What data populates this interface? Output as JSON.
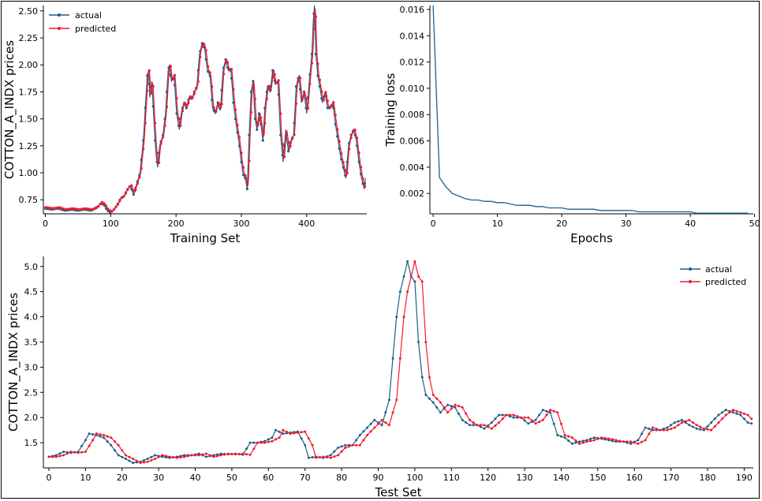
{
  "colors": {
    "actual": "#1f5f8b",
    "predicted": "#ee1c2e",
    "loss": "#1f5f8b"
  },
  "chart_data": [
    {
      "type": "line",
      "panel": "training",
      "xlabel": "Training Set",
      "ylabel": "COTTON_A_INDX prices",
      "xlim": [
        -3,
        492
      ],
      "ylim": [
        0.62,
        2.55
      ],
      "xticks": [
        0,
        100,
        200,
        300,
        400
      ],
      "yticks": [
        0.75,
        1.0,
        1.25,
        1.5,
        1.75,
        2.0,
        2.25,
        2.5
      ],
      "legend": "top-left",
      "series": [
        {
          "name": "actual",
          "key": "actual",
          "keypoints": [
            [
              0,
              0.67
            ],
            [
              10,
              0.66
            ],
            [
              20,
              0.67
            ],
            [
              30,
              0.65
            ],
            [
              40,
              0.66
            ],
            [
              50,
              0.65
            ],
            [
              60,
              0.66
            ],
            [
              70,
              0.65
            ],
            [
              80,
              0.68
            ],
            [
              85,
              0.72
            ],
            [
              90,
              0.7
            ],
            [
              95,
              0.65
            ],
            [
              100,
              0.63
            ],
            [
              105,
              0.66
            ],
            [
              110,
              0.7
            ],
            [
              115,
              0.76
            ],
            [
              120,
              0.78
            ],
            [
              125,
              0.84
            ],
            [
              130,
              0.88
            ],
            [
              135,
              0.8
            ],
            [
              140,
              0.9
            ],
            [
              145,
              1.0
            ],
            [
              150,
              1.3
            ],
            [
              153,
              1.6
            ],
            [
              156,
              1.9
            ],
            [
              158,
              1.95
            ],
            [
              160,
              1.7
            ],
            [
              163,
              1.85
            ],
            [
              166,
              1.5
            ],
            [
              169,
              1.2
            ],
            [
              172,
              1.05
            ],
            [
              175,
              1.25
            ],
            [
              180,
              1.35
            ],
            [
              184,
              1.55
            ],
            [
              188,
              1.95
            ],
            [
              190,
              2.0
            ],
            [
              193,
              1.85
            ],
            [
              197,
              1.9
            ],
            [
              201,
              1.55
            ],
            [
              205,
              1.4
            ],
            [
              208,
              1.55
            ],
            [
              212,
              1.65
            ],
            [
              216,
              1.6
            ],
            [
              220,
              1.7
            ],
            [
              224,
              1.68
            ],
            [
              228,
              1.75
            ],
            [
              232,
              1.8
            ],
            [
              236,
              2.1
            ],
            [
              240,
              2.2
            ],
            [
              244,
              2.15
            ],
            [
              248,
              1.95
            ],
            [
              252,
              1.9
            ],
            [
              256,
              1.6
            ],
            [
              260,
              1.55
            ],
            [
              264,
              1.65
            ],
            [
              268,
              1.58
            ],
            [
              272,
              1.95
            ],
            [
              276,
              2.05
            ],
            [
              280,
              1.95
            ],
            [
              284,
              1.95
            ],
            [
              288,
              1.65
            ],
            [
              292,
              1.45
            ],
            [
              296,
              1.3
            ],
            [
              300,
              1.1
            ],
            [
              303,
              0.98
            ],
            [
              306,
              0.95
            ],
            [
              309,
              0.85
            ],
            [
              312,
              1.35
            ],
            [
              315,
              1.75
            ],
            [
              318,
              1.85
            ],
            [
              321,
              1.5
            ],
            [
              324,
              1.4
            ],
            [
              327,
              1.55
            ],
            [
              330,
              1.45
            ],
            [
              333,
              1.3
            ],
            [
              336,
              1.6
            ],
            [
              340,
              1.8
            ],
            [
              344,
              1.75
            ],
            [
              348,
              1.95
            ],
            [
              352,
              1.82
            ],
            [
              356,
              1.85
            ],
            [
              360,
              1.35
            ],
            [
              364,
              1.1
            ],
            [
              368,
              1.4
            ],
            [
              372,
              1.2
            ],
            [
              376,
              1.3
            ],
            [
              380,
              1.35
            ],
            [
              384,
              1.8
            ],
            [
              388,
              1.9
            ],
            [
              392,
              1.65
            ],
            [
              396,
              1.75
            ],
            [
              400,
              1.55
            ],
            [
              404,
              1.85
            ],
            [
              408,
              2.1
            ],
            [
              410,
              2.4
            ],
            [
              412,
              2.55
            ],
            [
              414,
              2.1
            ],
            [
              417,
              1.9
            ],
            [
              420,
              1.8
            ],
            [
              424,
              1.65
            ],
            [
              428,
              1.75
            ],
            [
              432,
              1.6
            ],
            [
              436,
              1.6
            ],
            [
              440,
              1.65
            ],
            [
              444,
              1.45
            ],
            [
              448,
              1.3
            ],
            [
              452,
              1.15
            ],
            [
              456,
              1.05
            ],
            [
              460,
              0.95
            ],
            [
              464,
              1.25
            ],
            [
              468,
              1.35
            ],
            [
              472,
              1.4
            ],
            [
              476,
              1.3
            ],
            [
              480,
              1.1
            ],
            [
              484,
              0.95
            ],
            [
              488,
              0.85
            ],
            [
              490,
              0.95
            ]
          ]
        },
        {
          "name": "predicted",
          "key": "predicted",
          "lag": 1.5,
          "offset": 0.01
        }
      ]
    },
    {
      "type": "line",
      "panel": "loss",
      "xlabel": "Epochs",
      "ylabel": "Training loss",
      "xlim": [
        -0.5,
        49.8
      ],
      "ylim": [
        0.00045,
        0.0163
      ],
      "xticks": [
        0,
        10,
        20,
        30,
        40,
        50
      ],
      "yticks": [
        0.002,
        0.004,
        0.006,
        0.008,
        0.01,
        0.012,
        0.014,
        0.016
      ],
      "series": [
        {
          "name": "",
          "key": "loss",
          "x": [
            0,
            1,
            2,
            3,
            4,
            5,
            6,
            7,
            8,
            9,
            10,
            11,
            12,
            13,
            14,
            15,
            16,
            17,
            18,
            19,
            20,
            21,
            22,
            23,
            24,
            25,
            26,
            27,
            28,
            29,
            30,
            31,
            32,
            33,
            34,
            35,
            36,
            37,
            38,
            39,
            40,
            41,
            42,
            43,
            44,
            45,
            46,
            47,
            48,
            49
          ],
          "y": [
            0.0163,
            0.0032,
            0.0025,
            0.002,
            0.0018,
            0.0016,
            0.0015,
            0.0015,
            0.0014,
            0.0014,
            0.0013,
            0.0013,
            0.0012,
            0.0011,
            0.0011,
            0.0011,
            0.001,
            0.001,
            0.0009,
            0.0009,
            0.0009,
            0.0008,
            0.0008,
            0.0008,
            0.0008,
            0.0008,
            0.0007,
            0.0007,
            0.0007,
            0.0007,
            0.0007,
            0.0007,
            0.0006,
            0.0006,
            0.0006,
            0.0006,
            0.0006,
            0.0006,
            0.0006,
            0.0006,
            0.0006,
            0.0005,
            0.0005,
            0.0005,
            0.0005,
            0.0005,
            0.0005,
            0.0005,
            0.0005,
            0.0005
          ]
        }
      ]
    },
    {
      "type": "line",
      "panel": "test",
      "xlabel": "Test Set",
      "ylabel": "COTTON_A_INDX prices",
      "xlim": [
        -1.5,
        192.5
      ],
      "ylim": [
        1.0,
        5.2
      ],
      "xticks": [
        0,
        10,
        20,
        30,
        40,
        50,
        60,
        70,
        80,
        90,
        100,
        110,
        120,
        130,
        140,
        150,
        160,
        170,
        180,
        190
      ],
      "yticks": [
        1.5,
        2.0,
        2.5,
        3.0,
        3.5,
        4.0,
        4.5,
        5.0
      ],
      "legend": "top-right",
      "series": [
        {
          "name": "actual",
          "key": "actual",
          "keypoints": [
            [
              0,
              1.22
            ],
            [
              2,
              1.25
            ],
            [
              4,
              1.32
            ],
            [
              6,
              1.3
            ],
            [
              8,
              1.32
            ],
            [
              10,
              1.55
            ],
            [
              11,
              1.68
            ],
            [
              13,
              1.65
            ],
            [
              15,
              1.6
            ],
            [
              17,
              1.45
            ],
            [
              19,
              1.25
            ],
            [
              21,
              1.18
            ],
            [
              23,
              1.1
            ],
            [
              25,
              1.12
            ],
            [
              27,
              1.18
            ],
            [
              29,
              1.25
            ],
            [
              31,
              1.22
            ],
            [
              33,
              1.2
            ],
            [
              35,
              1.22
            ],
            [
              37,
              1.25
            ],
            [
              39,
              1.25
            ],
            [
              41,
              1.28
            ],
            [
              43,
              1.22
            ],
            [
              45,
              1.25
            ],
            [
              47,
              1.28
            ],
            [
              49,
              1.27
            ],
            [
              51,
              1.28
            ],
            [
              53,
              1.26
            ],
            [
              55,
              1.5
            ],
            [
              57,
              1.5
            ],
            [
              59,
              1.53
            ],
            [
              61,
              1.6
            ],
            [
              62,
              1.75
            ],
            [
              64,
              1.68
            ],
            [
              66,
              1.7
            ],
            [
              68,
              1.72
            ],
            [
              70,
              1.45
            ],
            [
              71,
              1.2
            ],
            [
              73,
              1.22
            ],
            [
              75,
              1.2
            ],
            [
              77,
              1.25
            ],
            [
              79,
              1.4
            ],
            [
              81,
              1.45
            ],
            [
              83,
              1.45
            ],
            [
              85,
              1.65
            ],
            [
              87,
              1.8
            ],
            [
              89,
              1.95
            ],
            [
              91,
              1.85
            ],
            [
              93,
              2.35
            ],
            [
              95,
              4.0
            ],
            [
              96,
              4.5
            ],
            [
              98,
              5.1
            ],
            [
              99,
              4.8
            ],
            [
              100,
              4.7
            ],
            [
              101,
              3.5
            ],
            [
              102,
              2.8
            ],
            [
              103,
              2.45
            ],
            [
              105,
              2.3
            ],
            [
              107,
              2.1
            ],
            [
              109,
              2.25
            ],
            [
              111,
              2.2
            ],
            [
              113,
              1.95
            ],
            [
              115,
              1.85
            ],
            [
              117,
              1.85
            ],
            [
              119,
              1.78
            ],
            [
              121,
              1.9
            ],
            [
              123,
              2.05
            ],
            [
              125,
              2.05
            ],
            [
              127,
              2.0
            ],
            [
              129,
              2.0
            ],
            [
              131,
              1.88
            ],
            [
              133,
              1.95
            ],
            [
              135,
              2.15
            ],
            [
              137,
              2.1
            ],
            [
              139,
              1.65
            ],
            [
              141,
              1.6
            ],
            [
              143,
              1.48
            ],
            [
              145,
              1.52
            ],
            [
              147,
              1.55
            ],
            [
              149,
              1.6
            ],
            [
              151,
              1.58
            ],
            [
              153,
              1.55
            ],
            [
              155,
              1.52
            ],
            [
              157,
              1.52
            ],
            [
              159,
              1.48
            ],
            [
              161,
              1.55
            ],
            [
              163,
              1.8
            ],
            [
              165,
              1.75
            ],
            [
              167,
              1.75
            ],
            [
              169,
              1.8
            ],
            [
              171,
              1.9
            ],
            [
              173,
              1.95
            ],
            [
              175,
              1.85
            ],
            [
              177,
              1.78
            ],
            [
              179,
              1.75
            ],
            [
              181,
              1.9
            ],
            [
              183,
              2.05
            ],
            [
              185,
              2.15
            ],
            [
              187,
              2.1
            ],
            [
              189,
              2.05
            ],
            [
              191,
              1.9
            ],
            [
              192,
              1.88
            ]
          ]
        },
        {
          "name": "predicted",
          "key": "predicted",
          "lag": 2.0,
          "offset": 0.0
        }
      ]
    }
  ]
}
